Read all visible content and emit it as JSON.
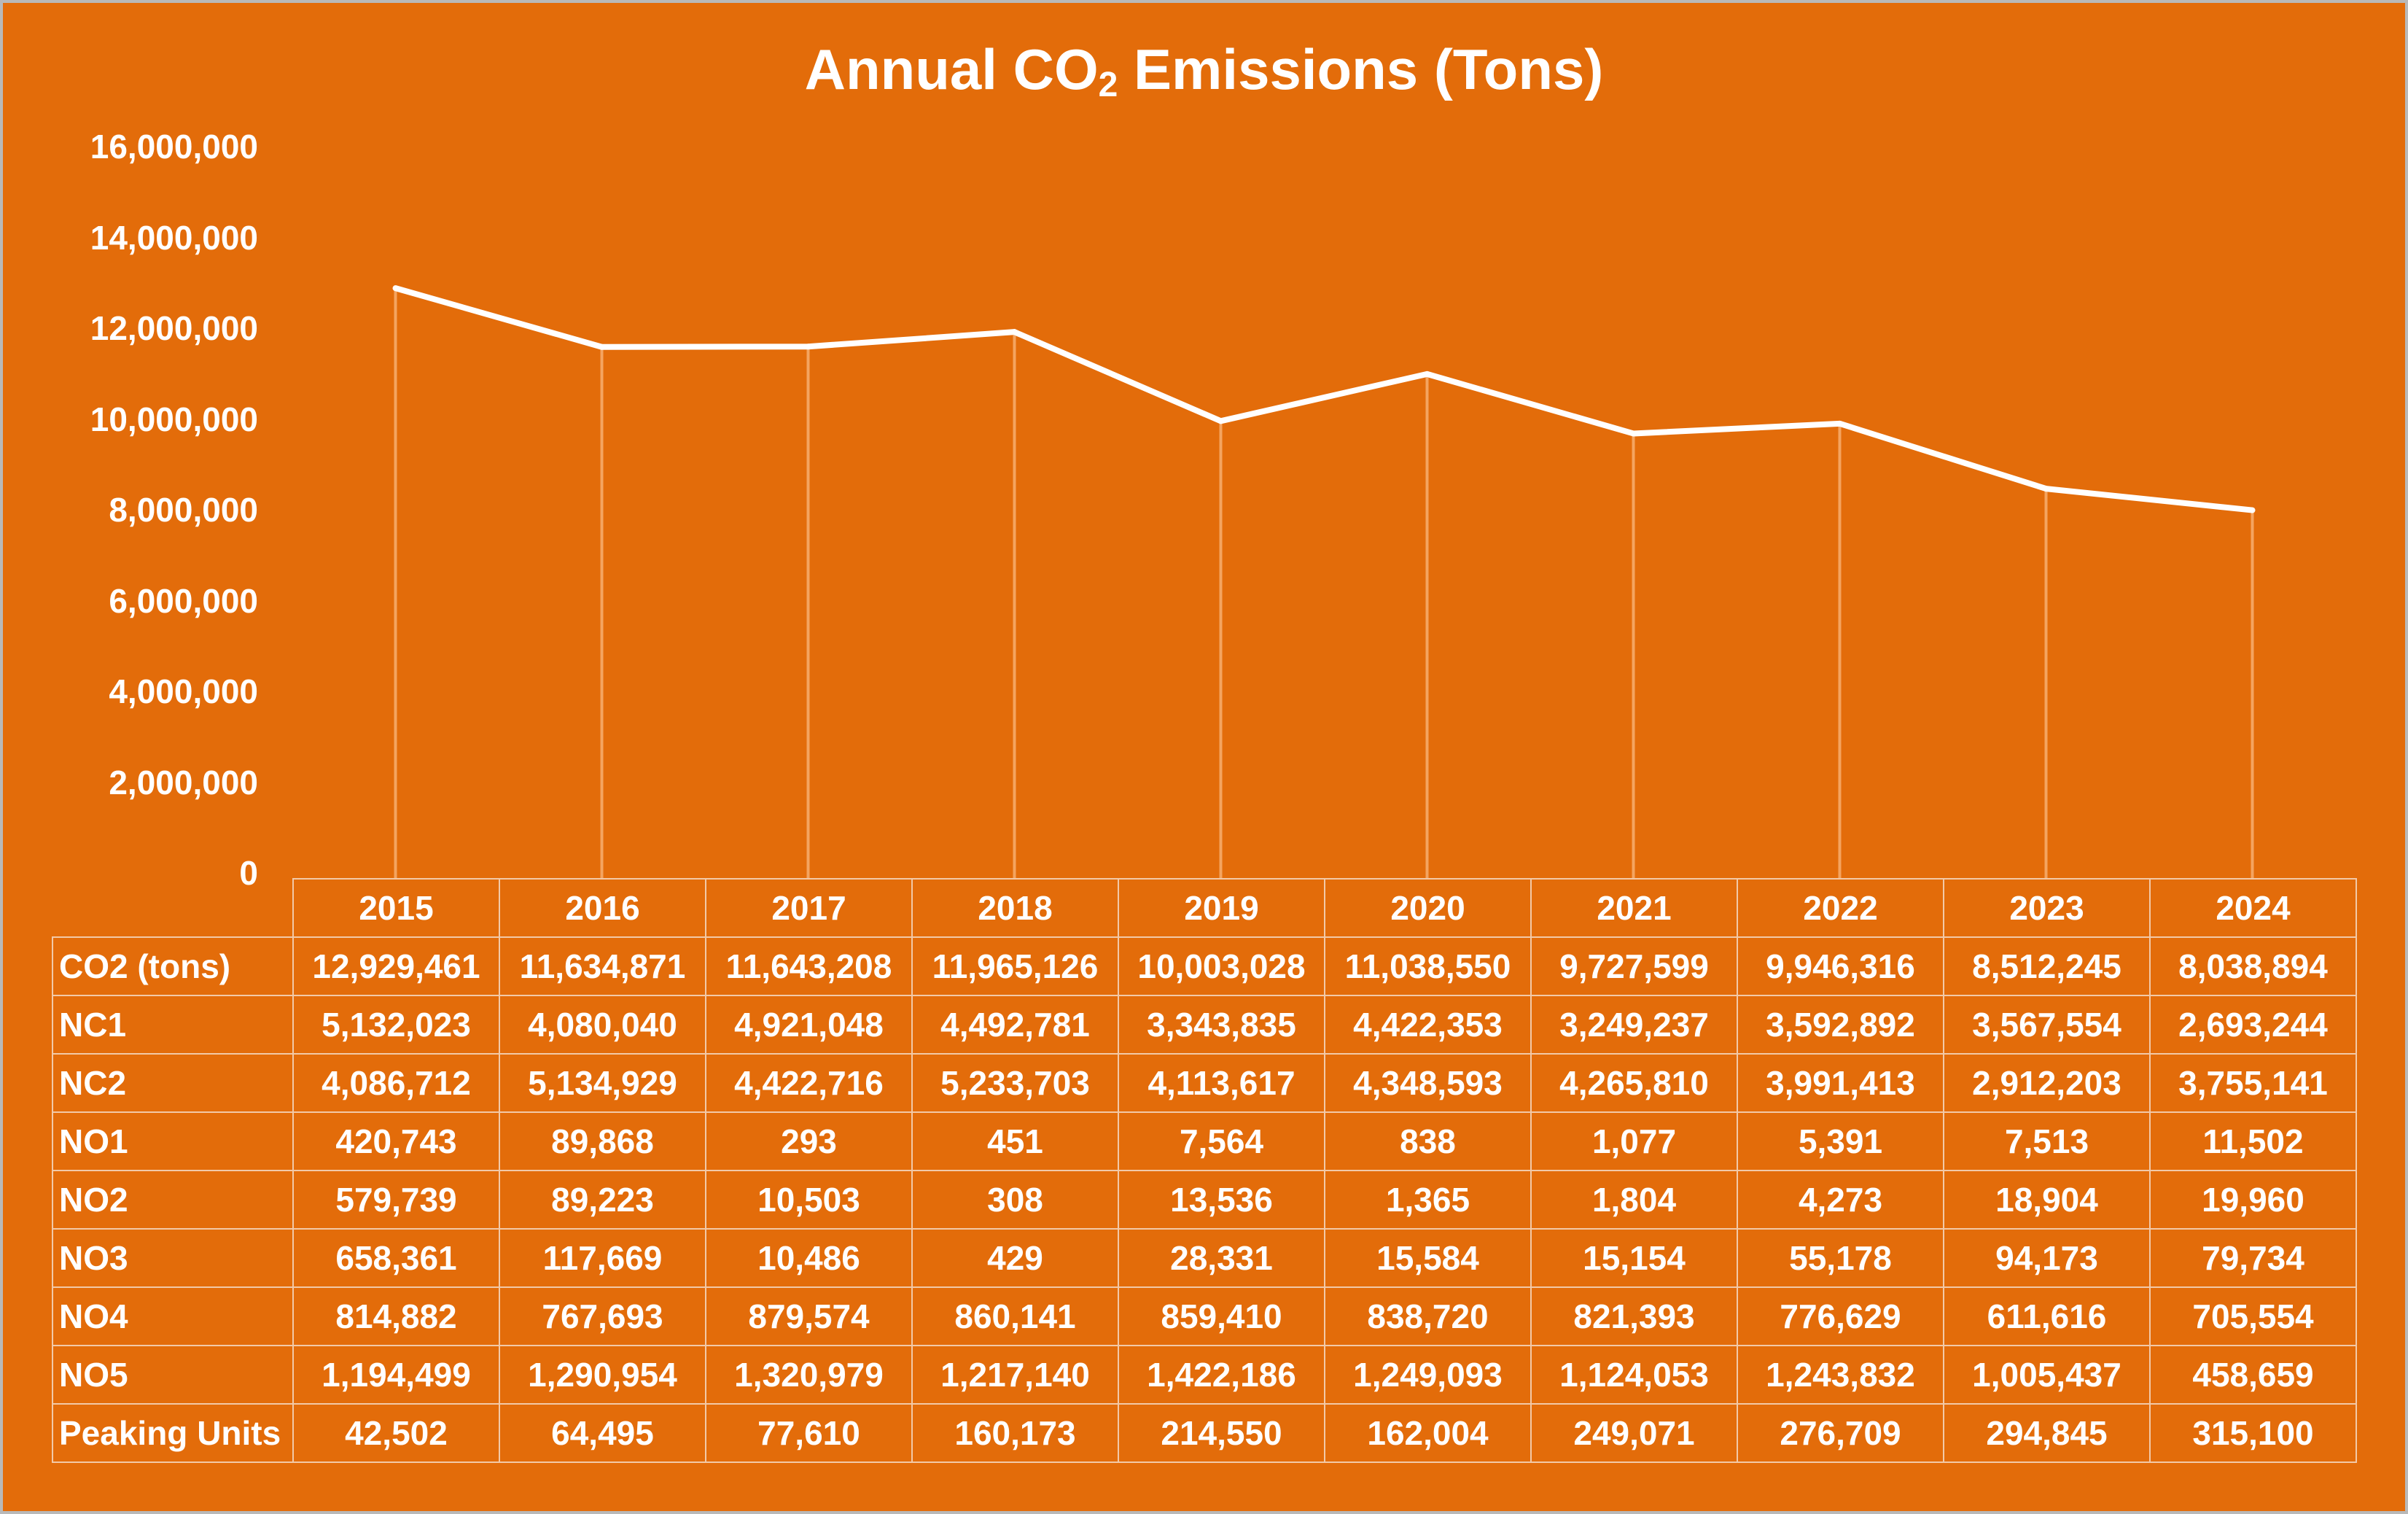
{
  "chart_data": {
    "type": "line",
    "title": "Annual CO",
    "title_subscript": "2",
    "title_suffix": " Emissions (Tons)",
    "xlabel": "",
    "ylabel": "",
    "ylim": [
      0,
      16000000
    ],
    "y_ticks": [
      "0",
      "2,000,000",
      "4,000,000",
      "6,000,000",
      "8,000,000",
      "10,000,000",
      "12,000,000",
      "14,000,000",
      "16,000,000"
    ],
    "y_tick_values": [
      0,
      2000000,
      4000000,
      6000000,
      8000000,
      10000000,
      12000000,
      14000000,
      16000000
    ],
    "categories": [
      "2015",
      "2016",
      "2017",
      "2018",
      "2019",
      "2020",
      "2021",
      "2022",
      "2023",
      "2024"
    ],
    "series": [
      {
        "name": "CO2 (tons)",
        "values": [
          12929461,
          11634871,
          11643208,
          11965126,
          10003028,
          11038550,
          9727599,
          9946316,
          8512245,
          8038894
        ]
      }
    ],
    "grid": "vertical drop lines",
    "legend": "data table",
    "colors": {
      "background": "#E36C0A",
      "line": "#FFFFFF",
      "drop_lines": "#F4A460",
      "table_border": "#F2C9A8"
    },
    "table": {
      "rows": [
        {
          "label": "CO2 (tons)",
          "values": [
            "12,929,461",
            "11,634,871",
            "11,643,208",
            "11,965,126",
            "10,003,028",
            "11,038,550",
            "9,727,599",
            "9,946,316",
            "8,512,245",
            "8,038,894"
          ]
        },
        {
          "label": "NC1",
          "values": [
            "5,132,023",
            "4,080,040",
            "4,921,048",
            "4,492,781",
            "3,343,835",
            "4,422,353",
            "3,249,237",
            "3,592,892",
            "3,567,554",
            "2,693,244"
          ]
        },
        {
          "label": "NC2",
          "values": [
            "4,086,712",
            "5,134,929",
            "4,422,716",
            "5,233,703",
            "4,113,617",
            "4,348,593",
            "4,265,810",
            "3,991,413",
            "2,912,203",
            "3,755,141"
          ]
        },
        {
          "label": "NO1",
          "values": [
            "420,743",
            "89,868",
            "293",
            "451",
            "7,564",
            "838",
            "1,077",
            "5,391",
            "7,513",
            "11,502"
          ]
        },
        {
          "label": "NO2",
          "values": [
            "579,739",
            "89,223",
            "10,503",
            "308",
            "13,536",
            "1,365",
            "1,804",
            "4,273",
            "18,904",
            "19,960"
          ]
        },
        {
          "label": "NO3",
          "values": [
            "658,361",
            "117,669",
            "10,486",
            "429",
            "28,331",
            "15,584",
            "15,154",
            "55,178",
            "94,173",
            "79,734"
          ]
        },
        {
          "label": "NO4",
          "values": [
            "814,882",
            "767,693",
            "879,574",
            "860,141",
            "859,410",
            "838,720",
            "821,393",
            "776,629",
            "611,616",
            "705,554"
          ]
        },
        {
          "label": "NO5",
          "values": [
            "1,194,499",
            "1,290,954",
            "1,320,979",
            "1,217,140",
            "1,422,186",
            "1,249,093",
            "1,124,053",
            "1,243,832",
            "1,005,437",
            "458,659"
          ]
        },
        {
          "label": "Peaking Units",
          "values": [
            "42,502",
            "64,495",
            "77,610",
            "160,173",
            "214,550",
            "162,004",
            "249,071",
            "276,709",
            "294,845",
            "315,100"
          ]
        }
      ]
    }
  }
}
